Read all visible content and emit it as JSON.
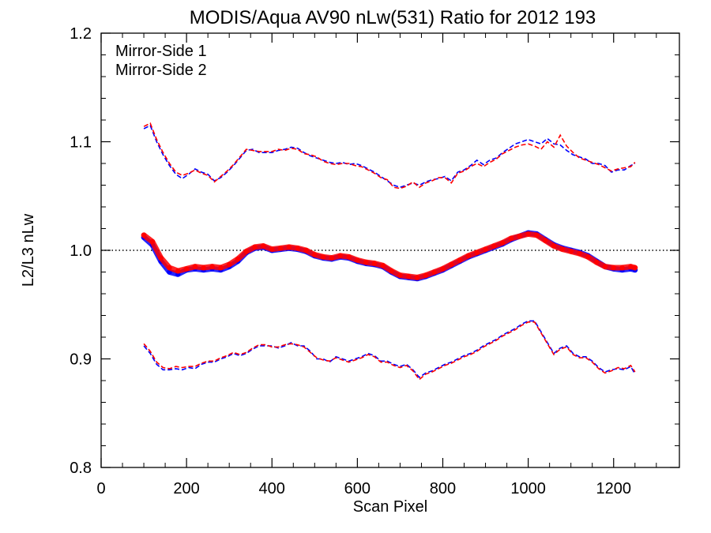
{
  "chart_data": {
    "type": "scatter",
    "title": "MODIS/Aqua AV90 nLw(531) Ratio for 2012 193",
    "xlabel": "Scan Pixel",
    "ylabel": "L2/L3 nLw",
    "xlim": [
      0,
      1354
    ],
    "ylim": [
      0.8,
      1.2
    ],
    "x_ticks": [
      "0",
      "200",
      "400",
      "600",
      "800",
      "1000",
      "1200"
    ],
    "y_ticks": [
      "0.8",
      "0.9",
      "1.0",
      "1.1",
      "1.2"
    ],
    "grid": false,
    "legend_position": "top-left",
    "reference_line": {
      "y": 1.0,
      "style": "dotted"
    },
    "series": [
      {
        "name": "Mirror-Side 1",
        "color": "#0000ff",
        "ratio": {
          "x": [
            100,
            120,
            140,
            160,
            180,
            200,
            220,
            240,
            260,
            280,
            300,
            320,
            340,
            360,
            380,
            400,
            420,
            440,
            460,
            480,
            500,
            520,
            540,
            560,
            580,
            600,
            620,
            640,
            660,
            680,
            700,
            720,
            740,
            760,
            780,
            800,
            820,
            840,
            860,
            880,
            900,
            920,
            940,
            960,
            980,
            1000,
            1020,
            1040,
            1060,
            1080,
            1100,
            1120,
            1140,
            1160,
            1180,
            1200,
            1220,
            1240,
            1250
          ],
          "y": [
            1.012,
            1.005,
            0.99,
            0.98,
            0.978,
            0.982,
            0.983,
            0.982,
            0.983,
            0.982,
            0.985,
            0.99,
            0.998,
            1.002,
            1.003,
            1.0,
            1.001,
            1.002,
            1.001,
            0.999,
            0.995,
            0.993,
            0.992,
            0.994,
            0.993,
            0.99,
            0.988,
            0.987,
            0.985,
            0.98,
            0.976,
            0.975,
            0.974,
            0.976,
            0.979,
            0.982,
            0.986,
            0.99,
            0.994,
            0.997,
            1.0,
            1.003,
            1.006,
            1.01,
            1.013,
            1.016,
            1.015,
            1.01,
            1.005,
            1.002,
            1.0,
            0.998,
            0.995,
            0.99,
            0.985,
            0.983,
            0.982,
            0.983,
            0.982
          ]
        },
        "upper": {
          "x": [
            100,
            115,
            130,
            145,
            160,
            175,
            190,
            205,
            220,
            235,
            250,
            265,
            280,
            295,
            310,
            325,
            340,
            355,
            370,
            385,
            400,
            415,
            430,
            445,
            460,
            475,
            490,
            505,
            520,
            535,
            550,
            565,
            580,
            595,
            610,
            625,
            640,
            655,
            670,
            685,
            700,
            715,
            730,
            745,
            760,
            775,
            790,
            805,
            820,
            835,
            850,
            865,
            880,
            895,
            910,
            925,
            940,
            955,
            970,
            985,
            1000,
            1015,
            1030,
            1045,
            1060,
            1075,
            1090,
            1105,
            1120,
            1135,
            1150,
            1165,
            1180,
            1195,
            1210,
            1225,
            1240,
            1250
          ],
          "y": [
            1.112,
            1.115,
            1.1,
            1.088,
            1.078,
            1.07,
            1.066,
            1.07,
            1.075,
            1.072,
            1.07,
            1.064,
            1.067,
            1.072,
            1.078,
            1.085,
            1.092,
            1.093,
            1.09,
            1.09,
            1.09,
            1.092,
            1.093,
            1.095,
            1.094,
            1.09,
            1.087,
            1.085,
            1.083,
            1.081,
            1.08,
            1.081,
            1.079,
            1.08,
            1.078,
            1.075,
            1.072,
            1.068,
            1.064,
            1.06,
            1.058,
            1.06,
            1.062,
            1.06,
            1.063,
            1.065,
            1.066,
            1.068,
            1.064,
            1.072,
            1.074,
            1.078,
            1.083,
            1.079,
            1.083,
            1.085,
            1.09,
            1.094,
            1.098,
            1.1,
            1.102,
            1.1,
            1.098,
            1.103,
            1.098,
            1.097,
            1.092,
            1.088,
            1.086,
            1.084,
            1.08,
            1.08,
            1.078,
            1.072,
            1.074,
            1.074,
            1.078,
            1.08
          ]
        },
        "lower": {
          "x": [
            100,
            115,
            130,
            145,
            160,
            175,
            190,
            205,
            220,
            235,
            250,
            265,
            280,
            295,
            310,
            325,
            340,
            355,
            370,
            385,
            400,
            415,
            430,
            445,
            460,
            475,
            490,
            505,
            520,
            535,
            550,
            565,
            580,
            595,
            610,
            625,
            640,
            655,
            670,
            685,
            700,
            715,
            730,
            745,
            760,
            775,
            790,
            805,
            820,
            835,
            850,
            865,
            880,
            895,
            910,
            925,
            940,
            955,
            970,
            985,
            1000,
            1015,
            1030,
            1045,
            1060,
            1075,
            1090,
            1105,
            1120,
            1135,
            1150,
            1165,
            1180,
            1195,
            1210,
            1225,
            1240,
            1250
          ],
          "y": [
            0.912,
            0.905,
            0.895,
            0.89,
            0.89,
            0.891,
            0.89,
            0.892,
            0.891,
            0.895,
            0.897,
            0.897,
            0.9,
            0.902,
            0.905,
            0.903,
            0.905,
            0.909,
            0.912,
            0.912,
            0.912,
            0.91,
            0.912,
            0.915,
            0.912,
            0.912,
            0.907,
            0.9,
            0.9,
            0.897,
            0.902,
            0.9,
            0.898,
            0.9,
            0.902,
            0.905,
            0.903,
            0.898,
            0.898,
            0.895,
            0.893,
            0.895,
            0.89,
            0.883,
            0.887,
            0.889,
            0.892,
            0.895,
            0.897,
            0.9,
            0.903,
            0.905,
            0.908,
            0.912,
            0.915,
            0.918,
            0.922,
            0.925,
            0.928,
            0.932,
            0.935,
            0.935,
            0.925,
            0.915,
            0.905,
            0.91,
            0.912,
            0.905,
            0.902,
            0.902,
            0.898,
            0.892,
            0.888,
            0.89,
            0.891,
            0.89,
            0.893,
            0.886
          ]
        }
      },
      {
        "name": "Mirror-Side 2",
        "color": "#ff0000",
        "ratio": {
          "x": [
            100,
            120,
            140,
            160,
            180,
            200,
            220,
            240,
            260,
            280,
            300,
            320,
            340,
            360,
            380,
            400,
            420,
            440,
            460,
            480,
            500,
            520,
            540,
            560,
            580,
            600,
            620,
            640,
            660,
            680,
            700,
            720,
            740,
            760,
            780,
            800,
            820,
            840,
            860,
            880,
            900,
            920,
            940,
            960,
            980,
            1000,
            1020,
            1040,
            1060,
            1080,
            1100,
            1120,
            1140,
            1160,
            1180,
            1200,
            1220,
            1240,
            1250
          ],
          "y": [
            1.014,
            1.008,
            0.993,
            0.984,
            0.981,
            0.983,
            0.985,
            0.984,
            0.985,
            0.984,
            0.987,
            0.992,
            0.999,
            1.003,
            1.004,
            1.001,
            1.002,
            1.003,
            1.002,
            1.0,
            0.996,
            0.994,
            0.993,
            0.995,
            0.994,
            0.991,
            0.989,
            0.988,
            0.986,
            0.981,
            0.977,
            0.976,
            0.975,
            0.977,
            0.98,
            0.983,
            0.987,
            0.991,
            0.995,
            0.998,
            1.001,
            1.004,
            1.007,
            1.011,
            1.013,
            1.015,
            1.014,
            1.009,
            1.004,
            1.001,
            0.999,
            0.997,
            0.994,
            0.989,
            0.985,
            0.984,
            0.984,
            0.985,
            0.984
          ]
        },
        "upper": {
          "x": [
            100,
            115,
            130,
            145,
            160,
            175,
            190,
            205,
            220,
            235,
            250,
            265,
            280,
            295,
            310,
            325,
            340,
            355,
            370,
            385,
            400,
            415,
            430,
            445,
            460,
            475,
            490,
            505,
            520,
            535,
            550,
            565,
            580,
            595,
            610,
            625,
            640,
            655,
            670,
            685,
            700,
            715,
            730,
            745,
            760,
            775,
            790,
            805,
            820,
            835,
            850,
            865,
            880,
            895,
            910,
            925,
            940,
            955,
            970,
            985,
            1000,
            1015,
            1030,
            1045,
            1060,
            1075,
            1090,
            1105,
            1120,
            1135,
            1150,
            1165,
            1180,
            1195,
            1210,
            1225,
            1240,
            1250
          ],
          "y": [
            1.114,
            1.117,
            1.102,
            1.09,
            1.08,
            1.072,
            1.069,
            1.071,
            1.074,
            1.071,
            1.069,
            1.063,
            1.068,
            1.073,
            1.079,
            1.086,
            1.093,
            1.092,
            1.091,
            1.091,
            1.091,
            1.093,
            1.092,
            1.094,
            1.093,
            1.089,
            1.088,
            1.086,
            1.082,
            1.08,
            1.079,
            1.08,
            1.08,
            1.078,
            1.077,
            1.074,
            1.071,
            1.067,
            1.065,
            1.058,
            1.057,
            1.059,
            1.063,
            1.058,
            1.062,
            1.064,
            1.067,
            1.067,
            1.062,
            1.071,
            1.073,
            1.077,
            1.08,
            1.077,
            1.081,
            1.084,
            1.089,
            1.092,
            1.095,
            1.097,
            1.098,
            1.096,
            1.093,
            1.1,
            1.095,
            1.106,
            1.096,
            1.09,
            1.085,
            1.083,
            1.081,
            1.079,
            1.076,
            1.073,
            1.075,
            1.076,
            1.077,
            1.081
          ]
        },
        "lower": {
          "x": [
            100,
            115,
            130,
            145,
            160,
            175,
            190,
            205,
            220,
            235,
            250,
            265,
            280,
            295,
            310,
            325,
            340,
            355,
            370,
            385,
            400,
            415,
            430,
            445,
            460,
            475,
            490,
            505,
            520,
            535,
            550,
            565,
            580,
            595,
            610,
            625,
            640,
            655,
            670,
            685,
            700,
            715,
            730,
            745,
            760,
            775,
            790,
            805,
            820,
            835,
            850,
            865,
            880,
            895,
            910,
            925,
            940,
            955,
            970,
            985,
            1000,
            1015,
            1030,
            1045,
            1060,
            1075,
            1090,
            1105,
            1120,
            1135,
            1150,
            1165,
            1180,
            1195,
            1210,
            1225,
            1240,
            1250
          ],
          "y": [
            0.914,
            0.907,
            0.897,
            0.892,
            0.891,
            0.893,
            0.892,
            0.893,
            0.893,
            0.896,
            0.898,
            0.898,
            0.901,
            0.903,
            0.906,
            0.904,
            0.906,
            0.91,
            0.913,
            0.913,
            0.911,
            0.911,
            0.913,
            0.914,
            0.913,
            0.911,
            0.906,
            0.901,
            0.899,
            0.898,
            0.901,
            0.899,
            0.897,
            0.899,
            0.901,
            0.904,
            0.902,
            0.897,
            0.897,
            0.894,
            0.892,
            0.894,
            0.889,
            0.881,
            0.886,
            0.888,
            0.891,
            0.894,
            0.896,
            0.899,
            0.902,
            0.904,
            0.907,
            0.911,
            0.914,
            0.917,
            0.921,
            0.924,
            0.927,
            0.931,
            0.934,
            0.934,
            0.924,
            0.914,
            0.904,
            0.909,
            0.911,
            0.904,
            0.901,
            0.901,
            0.897,
            0.891,
            0.887,
            0.889,
            0.892,
            0.891,
            0.894,
            0.888
          ]
        }
      }
    ]
  }
}
